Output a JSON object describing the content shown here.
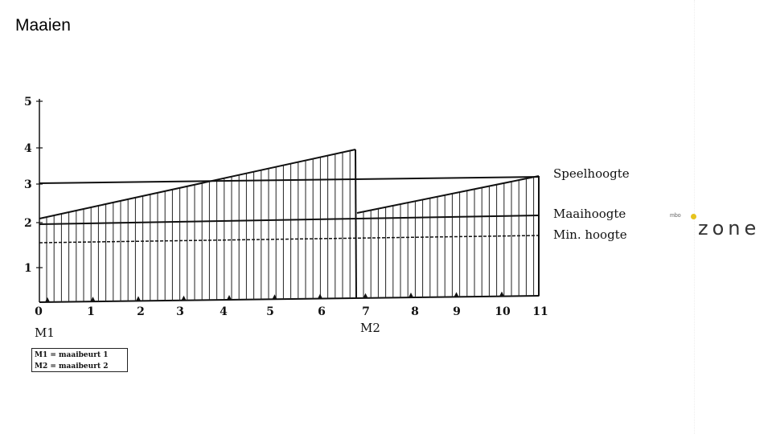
{
  "slide": {
    "title": "Maaien"
  },
  "diagram": {
    "y_ticks": [
      "1",
      "2",
      "3",
      "4",
      "5"
    ],
    "x_ticks": [
      "0",
      "1",
      "2",
      "3",
      "4",
      "5",
      "6",
      "7",
      "8",
      "9",
      "10",
      "11"
    ],
    "mow_marks": [
      "M1",
      "M2"
    ],
    "lines": {
      "speelhoogte": "Speelhoogte",
      "maaihoogte": "Maaihoogte",
      "min_hoogte": "Min. hoogte"
    }
  },
  "legend": {
    "row1": "M1 = maaibeurt 1",
    "row2": "M2 = maaibeurt 2"
  },
  "logo": {
    "small": "mbo",
    "main": "zone",
    "dot_color": "#e6c31e"
  }
}
